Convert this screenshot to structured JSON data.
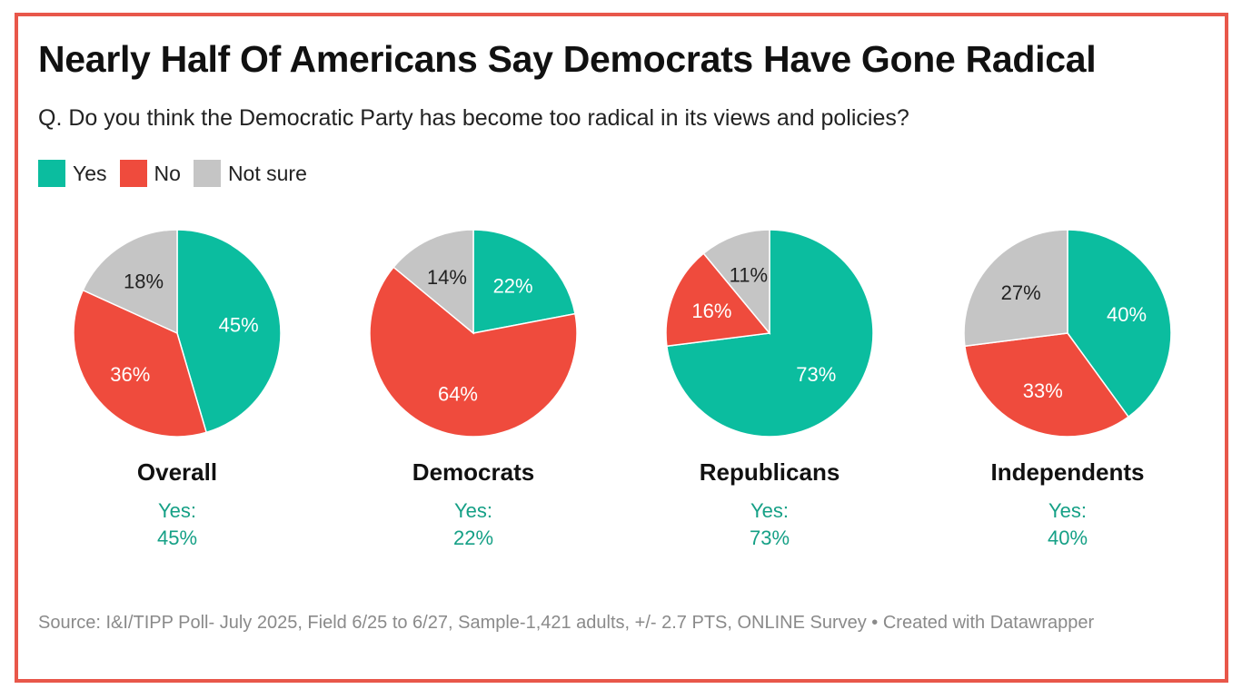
{
  "title": "Nearly Half Of Americans Say Democrats Have Gone Radical",
  "subtitle": "Q. Do you think the Democratic Party has become too radical in its views and policies?",
  "legend": [
    {
      "label": "Yes",
      "color": "#0bbd9f"
    },
    {
      "label": "No",
      "color": "#ef4b3d"
    },
    {
      "label": "Not sure",
      "color": "#c5c5c5"
    }
  ],
  "source": "Source: I&I/TIPP Poll- July 2025, Field 6/25 to 6/27, Sample-1,421 adults, +/- 2.7 PTS, ONLINE Survey • Created with Datawrapper",
  "chart_data": {
    "type": "pie",
    "categories": [
      "Yes",
      "No",
      "Not sure"
    ],
    "charts": [
      {
        "name": "Overall",
        "values": [
          45,
          36,
          18
        ],
        "labels": [
          "45%",
          "36%",
          "18%"
        ],
        "yes_label": "Yes:",
        "yes_value": "45%"
      },
      {
        "name": "Democrats",
        "values": [
          22,
          64,
          14
        ],
        "labels": [
          "22%",
          "64%",
          "14%"
        ],
        "yes_label": "Yes:",
        "yes_value": "22%"
      },
      {
        "name": "Republicans",
        "values": [
          73,
          16,
          11
        ],
        "labels": [
          "73%",
          "16%",
          "11%"
        ],
        "yes_label": "Yes:",
        "yes_value": "73%"
      },
      {
        "name": "Independents",
        "values": [
          40,
          33,
          27
        ],
        "labels": [
          "40%",
          "33%",
          "27%"
        ],
        "yes_label": "Yes:",
        "yes_value": "40%"
      }
    ]
  }
}
